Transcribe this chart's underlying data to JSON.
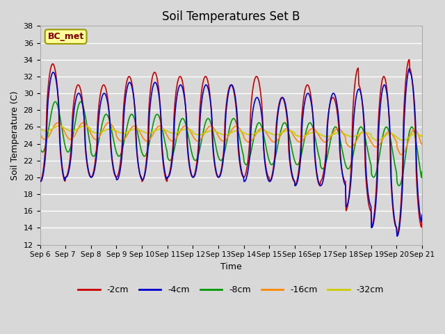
{
  "title": "Soil Temperatures Set B",
  "xlabel": "Time",
  "ylabel": "Soil Temperature (C)",
  "ylim": [
    12,
    38
  ],
  "annotation": "BC_met",
  "legend_labels": [
    "-2cm",
    "-4cm",
    "-8cm",
    "-16cm",
    "-32cm"
  ],
  "line_colors": [
    "#cc0000",
    "#0000cc",
    "#009900",
    "#ff8800",
    "#cccc00"
  ],
  "background_color": "#d8d8d8",
  "plot_bg_color": "#d8d8d8",
  "grid_color": "#ffffff",
  "tick_labels": [
    "Sep 6",
    "Sep 7",
    "Sep 8",
    "Sep 9",
    "Sep 10",
    "Sep 11",
    "Sep 12",
    "Sep 13",
    "Sep 14",
    "Sep 15",
    "Sep 16",
    "Sep 17",
    "Sep 18",
    "Sep 19",
    "Sep 20",
    "Sep 21"
  ],
  "figsize": [
    6.4,
    4.8
  ],
  "dpi": 100
}
